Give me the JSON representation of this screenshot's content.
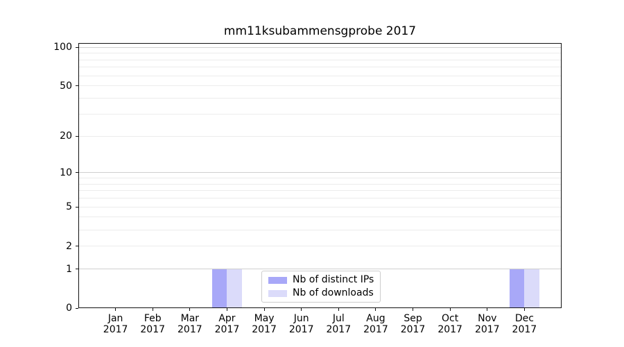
{
  "chart_data": {
    "type": "bar",
    "title": "mm11ksubammensgprobe 2017",
    "categories": [
      "Jan 2017",
      "Feb 2017",
      "Mar 2017",
      "Apr 2017",
      "May 2017",
      "Jun 2017",
      "Jul 2017",
      "Aug 2017",
      "Sep 2017",
      "Oct 2017",
      "Nov 2017",
      "Dec 2017"
    ],
    "series": [
      {
        "name": "Nb of distinct IPs",
        "color": "#a8a8f8",
        "values": [
          0,
          0,
          0,
          1,
          0,
          0,
          0,
          0,
          0,
          0,
          0,
          1
        ]
      },
      {
        "name": "Nb of downloads",
        "color": "#dbdbfa",
        "values": [
          0,
          0,
          0,
          1,
          0,
          0,
          0,
          0,
          0,
          0,
          0,
          1
        ]
      }
    ],
    "y_scale": "log1p",
    "ylim": [
      0,
      108
    ],
    "y_ticks": [
      0,
      1,
      2,
      5,
      10,
      20,
      50,
      100
    ],
    "y_minor_gridlines": [
      3,
      4,
      6,
      7,
      8,
      9,
      30,
      40,
      60,
      70,
      80,
      90
    ],
    "y_major_gridlines": [
      1,
      10,
      100
    ],
    "grid": true,
    "legend_position": "bottom-center-inside",
    "bar_group": "side-by-side"
  }
}
